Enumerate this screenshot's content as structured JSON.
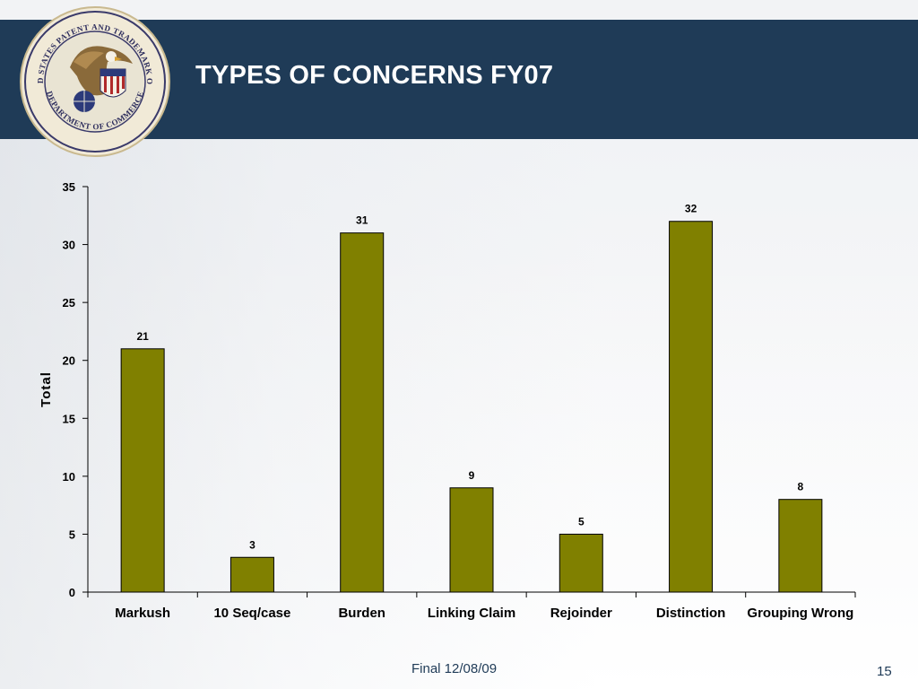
{
  "slide": {
    "title": "TYPES OF CONCERNS FY07",
    "footer": "Final 12/08/09",
    "page_number": "15",
    "seal_text_top": "UNITED STATES PATENT AND TRADEMARK OFFICE",
    "seal_text_bottom": "DEPARTMENT OF COMMERCE"
  },
  "colors": {
    "header_bg": "#1f3b57",
    "bar_fill": "#808000",
    "bar_stroke": "#000000"
  },
  "chart_data": {
    "type": "bar",
    "categories": [
      "Markush",
      "10 Seq/case",
      "Burden",
      "Linking Claim",
      "Rejoinder",
      "Distinction",
      "Grouping Wrong"
    ],
    "values": [
      21,
      3,
      31,
      9,
      5,
      32,
      8
    ],
    "title": "",
    "xlabel": "",
    "ylabel": "Total",
    "ylim": [
      0,
      35
    ],
    "yticks": [
      0,
      5,
      10,
      15,
      20,
      25,
      30,
      35
    ],
    "data_labels": true,
    "legend": "none",
    "grid": false
  }
}
